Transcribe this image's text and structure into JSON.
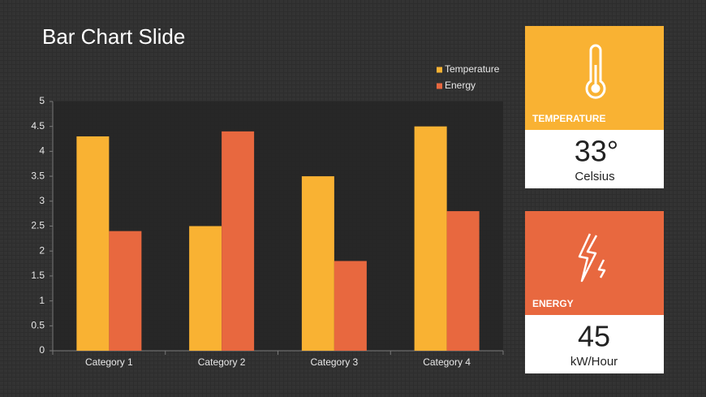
{
  "chart_data": {
    "type": "bar",
    "title": "Bar Chart Slide",
    "categories": [
      "Category 1",
      "Category 2",
      "Category 3",
      "Category 4"
    ],
    "series": [
      {
        "name": "Temperature",
        "color": "#f9b233",
        "values": [
          4.3,
          2.5,
          3.5,
          4.5
        ]
      },
      {
        "name": "Energy",
        "color": "#e8683f",
        "values": [
          2.4,
          4.4,
          1.8,
          2.8
        ]
      }
    ],
    "ylim": [
      0,
      5
    ],
    "yticks": [
      0,
      0.5,
      1,
      1.5,
      2,
      2.5,
      3,
      3.5,
      4,
      4.5,
      5
    ],
    "grid": false,
    "legend": "top-right"
  },
  "cards": [
    {
      "label": "TEMPERATURE",
      "value": "33°",
      "unit": "Celsius"
    },
    {
      "label": "ENERGY",
      "value": "45",
      "unit": "kW/Hour"
    }
  ]
}
